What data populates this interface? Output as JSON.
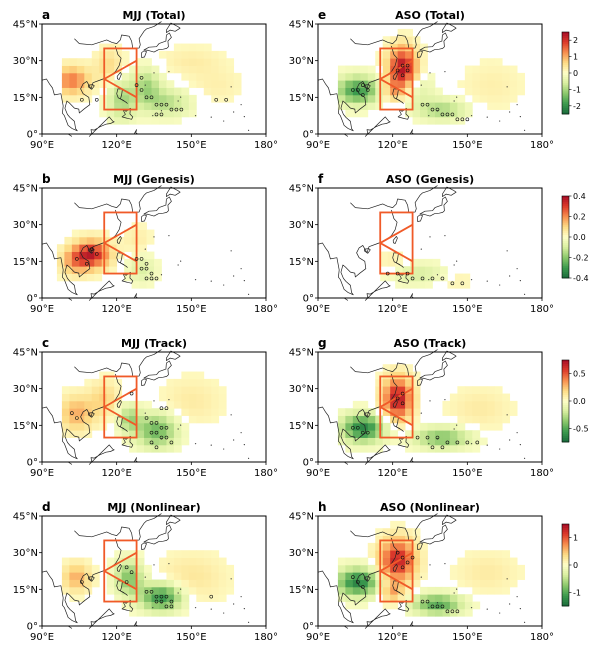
{
  "figure": {
    "rows": 4,
    "cols": 2
  },
  "colormap": {
    "stops": [
      "#1a6b3c",
      "#3c9b4e",
      "#8cc86c",
      "#d9efa0",
      "#fefec8",
      "#fddb85",
      "#f78e4e",
      "#dc3a2b",
      "#a50d26"
    ]
  },
  "overlay": {
    "box_color": "#f05a28",
    "stipple_note": "Open circles mark significant grid cells"
  },
  "chart_data": [
    {
      "type": "heatmap",
      "letter": "a",
      "title": "MJJ (Total)",
      "x_ticks": [
        "90°E",
        "120°E",
        "150°E",
        "180°"
      ],
      "y_ticks": [
        "45°N",
        "30°N",
        "15°N",
        "0°"
      ],
      "xlim": [
        90,
        180
      ],
      "ylim": [
        0,
        45
      ],
      "grid": false,
      "colorbar": {
        "range": [
          -2.5,
          2.5
        ],
        "ticks": [
          "2",
          "1",
          "0",
          "-1",
          "-2"
        ],
        "tick_values": [
          2,
          1,
          0,
          -1,
          -2
        ]
      },
      "features": [
        {
          "lon": 102,
          "lat": 22,
          "value": 1.4,
          "sx": 5,
          "sy": 4
        },
        {
          "lon": 117,
          "lat": 28,
          "value": 0.6,
          "sx": 4,
          "sy": 5
        },
        {
          "lon": 122,
          "lat": 14,
          "value": -1.0,
          "sx": 4,
          "sy": 6
        },
        {
          "lon": 132,
          "lat": 20,
          "value": -1.0,
          "sx": 4,
          "sy": 5
        },
        {
          "lon": 140,
          "lat": 13,
          "value": -0.9,
          "sx": 7,
          "sy": 4
        },
        {
          "lon": 150,
          "lat": 30,
          "value": 0.3,
          "sx": 9,
          "sy": 4
        },
        {
          "lon": 160,
          "lat": 20,
          "value": 0.25,
          "sx": 8,
          "sy": 5
        }
      ],
      "extent": {
        "lon": [
          98,
          172
        ],
        "lat": [
          4,
          42
        ]
      },
      "significant": [
        {
          "lon": 106,
          "lat": 14
        },
        {
          "lon": 112,
          "lat": 14
        },
        {
          "lon": 130,
          "lat": 18
        },
        {
          "lon": 132,
          "lat": 15
        },
        {
          "lon": 134,
          "lat": 15
        },
        {
          "lon": 136,
          "lat": 12
        },
        {
          "lon": 138,
          "lat": 12
        },
        {
          "lon": 140,
          "lat": 12
        },
        {
          "lon": 142,
          "lat": 10
        },
        {
          "lon": 144,
          "lat": 10
        },
        {
          "lon": 146,
          "lat": 10
        },
        {
          "lon": 136,
          "lat": 8
        },
        {
          "lon": 138,
          "lat": 8
        },
        {
          "lon": 160,
          "lat": 14
        },
        {
          "lon": 164,
          "lat": 14
        },
        {
          "lon": 128,
          "lat": 20
        },
        {
          "lon": 130,
          "lat": 23
        }
      ]
    },
    {
      "type": "heatmap",
      "letter": "e",
      "title": "ASO (Total)",
      "x_ticks": [
        "90°E",
        "120°E",
        "150°E",
        "180°"
      ],
      "y_ticks": [
        "45°N",
        "30°N",
        "15°N",
        "0°"
      ],
      "xlim": [
        90,
        180
      ],
      "ylim": [
        0,
        45
      ],
      "grid": false,
      "colorbar": {
        "range": [
          -2.5,
          2.5
        ],
        "ticks": [
          "2",
          "1",
          "0",
          "-1",
          "-2"
        ],
        "tick_values": [
          2,
          1,
          0,
          -1,
          -2
        ]
      },
      "features": [
        {
          "lon": 124,
          "lat": 27,
          "value": 2.4,
          "sx": 4,
          "sy": 6
        },
        {
          "lon": 106,
          "lat": 18,
          "value": -1.9,
          "sx": 6,
          "sy": 4
        },
        {
          "lon": 120,
          "lat": 18,
          "value": 0.9,
          "sx": 3,
          "sy": 3
        },
        {
          "lon": 140,
          "lat": 10,
          "value": -1.0,
          "sx": 7,
          "sy": 3
        },
        {
          "lon": 130,
          "lat": 18,
          "value": -0.5,
          "sx": 5,
          "sy": 5
        },
        {
          "lon": 160,
          "lat": 20,
          "value": 0.25,
          "sx": 9,
          "sy": 7
        }
      ],
      "extent": {
        "lon": [
          98,
          175
        ],
        "lat": [
          4,
          42
        ]
      },
      "significant": [
        {
          "lon": 104,
          "lat": 18
        },
        {
          "lon": 106,
          "lat": 18
        },
        {
          "lon": 108,
          "lat": 16
        },
        {
          "lon": 110,
          "lat": 18
        },
        {
          "lon": 108,
          "lat": 20
        },
        {
          "lon": 122,
          "lat": 26
        },
        {
          "lon": 124,
          "lat": 24
        },
        {
          "lon": 126,
          "lat": 26
        },
        {
          "lon": 124,
          "lat": 28
        },
        {
          "lon": 126,
          "lat": 28
        },
        {
          "lon": 132,
          "lat": 12
        },
        {
          "lon": 134,
          "lat": 12
        },
        {
          "lon": 136,
          "lat": 10
        },
        {
          "lon": 138,
          "lat": 10
        },
        {
          "lon": 140,
          "lat": 8
        },
        {
          "lon": 142,
          "lat": 8
        },
        {
          "lon": 144,
          "lat": 8
        },
        {
          "lon": 146,
          "lat": 6
        },
        {
          "lon": 148,
          "lat": 6
        },
        {
          "lon": 150,
          "lat": 6
        }
      ]
    },
    {
      "type": "heatmap",
      "letter": "b",
      "title": "MJJ (Genesis)",
      "x_ticks": [
        "90°E",
        "120°E",
        "150°E",
        "180°"
      ],
      "y_ticks": [
        "45°N",
        "30°N",
        "15°N",
        "0°"
      ],
      "xlim": [
        90,
        180
      ],
      "ylim": [
        0,
        45
      ],
      "grid": false,
      "colorbar": {
        "range": [
          -0.4,
          0.4
        ],
        "ticks": [
          "0.4",
          "0.2",
          "0.0",
          "-0.2",
          "-0.4"
        ],
        "tick_values": [
          0.4,
          0.2,
          0,
          -0.2,
          -0.4
        ]
      },
      "features": [
        {
          "lon": 110,
          "lat": 18,
          "value": 0.34,
          "sx": 5,
          "sy": 4
        },
        {
          "lon": 103,
          "lat": 15,
          "value": 0.15,
          "sx": 4,
          "sy": 4
        },
        {
          "lon": 130,
          "lat": 12,
          "value": -0.09,
          "sx": 4,
          "sy": 4
        },
        {
          "lon": 128,
          "lat": 24,
          "value": 0.05,
          "sx": 4,
          "sy": 4
        }
      ],
      "extent": {
        "lon": [
          96,
          140
        ],
        "lat": [
          4,
          32
        ]
      },
      "significant": [
        {
          "lon": 104,
          "lat": 16
        },
        {
          "lon": 110,
          "lat": 20
        },
        {
          "lon": 112,
          "lat": 18
        },
        {
          "lon": 108,
          "lat": 14
        },
        {
          "lon": 128,
          "lat": 16
        },
        {
          "lon": 130,
          "lat": 16
        },
        {
          "lon": 132,
          "lat": 14
        },
        {
          "lon": 130,
          "lat": 12
        },
        {
          "lon": 132,
          "lat": 12
        },
        {
          "lon": 134,
          "lat": 10
        },
        {
          "lon": 132,
          "lat": 8
        },
        {
          "lon": 134,
          "lat": 8
        },
        {
          "lon": 136,
          "lat": 8
        }
      ]
    },
    {
      "type": "heatmap",
      "letter": "f",
      "title": "ASO (Genesis)",
      "x_ticks": [
        "90°E",
        "120°E",
        "150°E",
        "180°"
      ],
      "y_ticks": [
        "45°N",
        "30°N",
        "15°N",
        "0°"
      ],
      "xlim": [
        90,
        180
      ],
      "ylim": [
        0,
        45
      ],
      "grid": false,
      "colorbar": {
        "range": [
          -0.4,
          0.4
        ],
        "ticks": [
          "0.4",
          "0.2",
          "0.0",
          "-0.2",
          "-0.4"
        ],
        "tick_values": [
          0.4,
          0.2,
          0,
          -0.2,
          -0.4
        ]
      },
      "features": [
        {
          "lon": 130,
          "lat": 10,
          "value": -0.1,
          "sx": 9,
          "sy": 3
        },
        {
          "lon": 120,
          "lat": 14,
          "value": 0.05,
          "sx": 4,
          "sy": 4
        },
        {
          "lon": 145,
          "lat": 8,
          "value": 0.04,
          "sx": 6,
          "sy": 3
        }
      ],
      "extent": {
        "lon": [
          112,
          160
        ],
        "lat": [
          4,
          20
        ]
      },
      "significant": [
        {
          "lon": 118,
          "lat": 10
        },
        {
          "lon": 122,
          "lat": 10
        },
        {
          "lon": 126,
          "lat": 10
        },
        {
          "lon": 128,
          "lat": 8
        },
        {
          "lon": 132,
          "lat": 8
        },
        {
          "lon": 136,
          "lat": 8
        },
        {
          "lon": 140,
          "lat": 8
        },
        {
          "lon": 144,
          "lat": 6
        },
        {
          "lon": 148,
          "lat": 6
        }
      ]
    },
    {
      "type": "heatmap",
      "letter": "c",
      "title": "MJJ (Track)",
      "x_ticks": [
        "90°E",
        "120°E",
        "150°E",
        "180°"
      ],
      "y_ticks": [
        "45°N",
        "30°N",
        "15°N",
        "0°"
      ],
      "xlim": [
        90,
        180
      ],
      "ylim": [
        0,
        45
      ],
      "grid": false,
      "colorbar": {
        "range": [
          -0.75,
          0.75
        ],
        "ticks": [
          "0.5",
          "0.0",
          "-0.5"
        ],
        "tick_values": [
          0.5,
          0,
          -0.5
        ]
      },
      "features": [
        {
          "lon": 104,
          "lat": 20,
          "value": 0.3,
          "sx": 5,
          "sy": 5
        },
        {
          "lon": 115,
          "lat": 26,
          "value": 0.2,
          "sx": 4,
          "sy": 5
        },
        {
          "lon": 136,
          "lat": 13,
          "value": -0.45,
          "sx": 6,
          "sy": 5
        },
        {
          "lon": 125,
          "lat": 18,
          "value": -0.3,
          "sx": 3,
          "sy": 4
        },
        {
          "lon": 150,
          "lat": 25,
          "value": 0.1,
          "sx": 9,
          "sy": 7
        }
      ],
      "extent": {
        "lon": [
          98,
          172
        ],
        "lat": [
          4,
          42
        ]
      },
      "significant": [
        {
          "lon": 102,
          "lat": 20
        },
        {
          "lon": 104,
          "lat": 18
        },
        {
          "lon": 126,
          "lat": 28
        },
        {
          "lon": 132,
          "lat": 18
        },
        {
          "lon": 134,
          "lat": 16
        },
        {
          "lon": 136,
          "lat": 16
        },
        {
          "lon": 138,
          "lat": 14
        },
        {
          "lon": 140,
          "lat": 14
        },
        {
          "lon": 134,
          "lat": 12
        },
        {
          "lon": 136,
          "lat": 12
        },
        {
          "lon": 138,
          "lat": 10
        },
        {
          "lon": 140,
          "lat": 10
        },
        {
          "lon": 142,
          "lat": 8
        },
        {
          "lon": 134,
          "lat": 8
        },
        {
          "lon": 136,
          "lat": 6
        },
        {
          "lon": 138,
          "lat": 22
        },
        {
          "lon": 140,
          "lat": 22
        }
      ]
    },
    {
      "type": "heatmap",
      "letter": "g",
      "title": "ASO (Track)",
      "x_ticks": [
        "90°E",
        "120°E",
        "150°E",
        "180°"
      ],
      "y_ticks": [
        "45°N",
        "30°N",
        "15°N",
        "0°"
      ],
      "xlim": [
        90,
        180
      ],
      "ylim": [
        0,
        45
      ],
      "grid": false,
      "colorbar": {
        "range": [
          -0.75,
          0.75
        ],
        "ticks": [
          "0.5",
          "0.0",
          "-0.5"
        ],
        "tick_values": [
          0.5,
          0,
          -0.5
        ]
      },
      "features": [
        {
          "lon": 122,
          "lat": 26,
          "value": 0.7,
          "sx": 4,
          "sy": 6
        },
        {
          "lon": 108,
          "lat": 14,
          "value": -0.65,
          "sx": 6,
          "sy": 4
        },
        {
          "lon": 140,
          "lat": 10,
          "value": -0.4,
          "sx": 8,
          "sy": 3
        },
        {
          "lon": 155,
          "lat": 22,
          "value": 0.1,
          "sx": 9,
          "sy": 6
        }
      ],
      "extent": {
        "lon": [
          98,
          175
        ],
        "lat": [
          4,
          42
        ]
      },
      "significant": [
        {
          "lon": 104,
          "lat": 14
        },
        {
          "lon": 106,
          "lat": 14
        },
        {
          "lon": 108,
          "lat": 12
        },
        {
          "lon": 110,
          "lat": 12
        },
        {
          "lon": 122,
          "lat": 26
        },
        {
          "lon": 124,
          "lat": 24
        },
        {
          "lon": 124,
          "lat": 28
        },
        {
          "lon": 130,
          "lat": 10
        },
        {
          "lon": 134,
          "lat": 10
        },
        {
          "lon": 138,
          "lat": 10
        },
        {
          "lon": 142,
          "lat": 8
        },
        {
          "lon": 146,
          "lat": 8
        },
        {
          "lon": 150,
          "lat": 8
        },
        {
          "lon": 154,
          "lat": 8
        },
        {
          "lon": 136,
          "lat": 6
        },
        {
          "lon": 140,
          "lat": 6
        }
      ]
    },
    {
      "type": "heatmap",
      "letter": "d",
      "title": "MJJ (Nonlinear)",
      "x_ticks": [
        "90°E",
        "120°E",
        "150°E",
        "180°"
      ],
      "y_ticks": [
        "45°N",
        "30°N",
        "15°N",
        "0°"
      ],
      "xlim": [
        90,
        180
      ],
      "ylim": [
        0,
        45
      ],
      "grid": false,
      "colorbar": {
        "range": [
          -1.5,
          1.5
        ],
        "ticks": [
          "1",
          "0",
          "-1"
        ],
        "tick_values": [
          1,
          0,
          -1
        ]
      },
      "features": [
        {
          "lon": 104,
          "lat": 20,
          "value": 0.6,
          "sx": 4,
          "sy": 4
        },
        {
          "lon": 125,
          "lat": 20,
          "value": -0.8,
          "sx": 4,
          "sy": 5
        },
        {
          "lon": 138,
          "lat": 12,
          "value": -1.2,
          "sx": 6,
          "sy": 4
        },
        {
          "lon": 150,
          "lat": 20,
          "value": 0.25,
          "sx": 10,
          "sy": 7
        }
      ],
      "extent": {
        "lon": [
          98,
          175
        ],
        "lat": [
          4,
          42
        ]
      },
      "significant": [
        {
          "lon": 106,
          "lat": 18
        },
        {
          "lon": 124,
          "lat": 24
        },
        {
          "lon": 126,
          "lat": 22
        },
        {
          "lon": 124,
          "lat": 18
        },
        {
          "lon": 132,
          "lat": 14
        },
        {
          "lon": 134,
          "lat": 14
        },
        {
          "lon": 136,
          "lat": 12
        },
        {
          "lon": 138,
          "lat": 12
        },
        {
          "lon": 140,
          "lat": 12
        },
        {
          "lon": 142,
          "lat": 10
        },
        {
          "lon": 136,
          "lat": 10
        },
        {
          "lon": 138,
          "lat": 10
        },
        {
          "lon": 140,
          "lat": 8
        },
        {
          "lon": 142,
          "lat": 8
        },
        {
          "lon": 158,
          "lat": 12
        }
      ]
    },
    {
      "type": "heatmap",
      "letter": "h",
      "title": "ASO (Nonlinear)",
      "x_ticks": [
        "90°E",
        "120°E",
        "150°E",
        "180°"
      ],
      "y_ticks": [
        "45°N",
        "30°N",
        "15°N",
        "0°"
      ],
      "xlim": [
        90,
        180
      ],
      "ylim": [
        0,
        45
      ],
      "grid": false,
      "colorbar": {
        "range": [
          -1.5,
          1.5
        ],
        "ticks": [
          "1",
          "0",
          "-1"
        ],
        "tick_values": [
          1,
          0,
          -1
        ]
      },
      "features": [
        {
          "lon": 122,
          "lat": 27,
          "value": 1.3,
          "sx": 5,
          "sy": 6
        },
        {
          "lon": 106,
          "lat": 18,
          "value": -1.3,
          "sx": 6,
          "sy": 4
        },
        {
          "lon": 138,
          "lat": 9,
          "value": -1.0,
          "sx": 7,
          "sy": 3
        },
        {
          "lon": 120,
          "lat": 14,
          "value": 0.6,
          "sx": 3,
          "sy": 3
        },
        {
          "lon": 158,
          "lat": 22,
          "value": 0.2,
          "sx": 9,
          "sy": 6
        }
      ],
      "extent": {
        "lon": [
          98,
          175
        ],
        "lat": [
          4,
          42
        ]
      },
      "significant": [
        {
          "lon": 104,
          "lat": 20
        },
        {
          "lon": 106,
          "lat": 18
        },
        {
          "lon": 108,
          "lat": 16
        },
        {
          "lon": 122,
          "lat": 30
        },
        {
          "lon": 124,
          "lat": 28
        },
        {
          "lon": 126,
          "lat": 26
        },
        {
          "lon": 124,
          "lat": 24
        },
        {
          "lon": 128,
          "lat": 28
        },
        {
          "lon": 132,
          "lat": 10
        },
        {
          "lon": 134,
          "lat": 10
        },
        {
          "lon": 136,
          "lat": 8
        },
        {
          "lon": 138,
          "lat": 8
        },
        {
          "lon": 140,
          "lat": 8
        },
        {
          "lon": 142,
          "lat": 6
        },
        {
          "lon": 144,
          "lat": 6
        },
        {
          "lon": 146,
          "lat": 6
        }
      ]
    }
  ]
}
